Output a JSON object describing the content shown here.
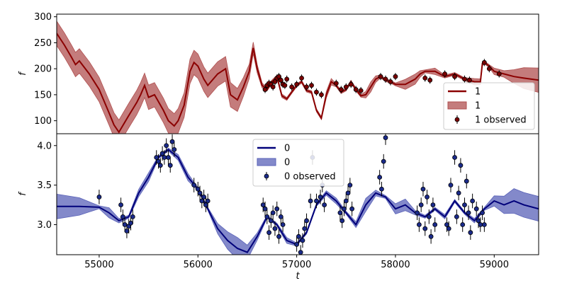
{
  "chart_data": [
    {
      "type": "line",
      "panel": "top",
      "title": "",
      "xlabel": "",
      "ylabel": "f",
      "xlim": [
        54570,
        59450
      ],
      "ylim": [
        75,
        305
      ],
      "yticks": [
        100,
        150,
        200,
        250,
        300
      ],
      "grid": false,
      "legend": {
        "placement": "bottom-right",
        "entries": [
          {
            "label": "1",
            "kind": "line"
          },
          {
            "label": "1",
            "kind": "band"
          },
          {
            "label": "1 observed",
            "kind": "points"
          }
        ]
      },
      "colors": {
        "line": "#8b0000",
        "band": "#b05050",
        "point_face": "#7a0000"
      },
      "series": [
        {
          "name": "1",
          "kind": "line",
          "x": [
            54570,
            54650,
            54720,
            54760,
            54800,
            54900,
            55000,
            55100,
            55150,
            55200,
            55300,
            55380,
            55420,
            55460,
            55500,
            55560,
            55650,
            55700,
            55760,
            55800,
            55860,
            55920,
            55960,
            56000,
            56060,
            56100,
            56200,
            56280,
            56330,
            56400,
            56460,
            56520,
            56560,
            56600,
            56650,
            56700,
            56750,
            56800,
            56850,
            56900,
            56950,
            57000,
            57050,
            57100,
            57150,
            57200,
            57250,
            57300,
            57350,
            57400,
            57450,
            57500,
            57550,
            57600,
            57650,
            57700,
            57750,
            57800,
            57850,
            57900,
            57950,
            58000,
            58100,
            58200,
            58250,
            58300,
            58400,
            58500,
            58600,
            58700,
            58800,
            58860,
            58880,
            58900,
            58950,
            59000,
            59100,
            59200,
            59300,
            59450
          ],
          "y": [
            268,
            245,
            222,
            208,
            215,
            190,
            160,
            115,
            92,
            78,
            110,
            135,
            150,
            168,
            145,
            150,
            120,
            100,
            90,
            100,
            130,
            195,
            212,
            205,
            180,
            168,
            190,
            200,
            150,
            140,
            165,
            195,
            240,
            200,
            168,
            160,
            175,
            185,
            148,
            142,
            155,
            168,
            175,
            158,
            155,
            120,
            105,
            150,
            175,
            168,
            155,
            160,
            175,
            160,
            148,
            150,
            165,
            180,
            185,
            178,
            175,
            170,
            170,
            180,
            190,
            195,
            195,
            185,
            190,
            180,
            175,
            175,
            210,
            212,
            205,
            195,
            190,
            185,
            182,
            178
          ]
        },
        {
          "name": "1 observed",
          "kind": "points",
          "x": [
            56680,
            56700,
            56720,
            56740,
            56760,
            56780,
            56800,
            56820,
            56840,
            56860,
            56880,
            56900,
            56950,
            57000,
            57050,
            57100,
            57150,
            57200,
            57250,
            57400,
            57450,
            57500,
            57550,
            57600,
            57650,
            57850,
            57900,
            57950,
            58000,
            58300,
            58350,
            58500,
            58600,
            58700,
            58750,
            58900,
            58950,
            59050
          ],
          "y": [
            160,
            168,
            172,
            170,
            165,
            175,
            182,
            185,
            178,
            170,
            168,
            180,
            165,
            170,
            182,
            165,
            168,
            155,
            150,
            172,
            160,
            165,
            170,
            160,
            158,
            185,
            180,
            175,
            185,
            182,
            178,
            190,
            185,
            180,
            178,
            212,
            200,
            190
          ]
        }
      ]
    },
    {
      "type": "line",
      "panel": "bottom",
      "title": "",
      "xlabel": "t",
      "ylabel": "f",
      "xlim": [
        54570,
        59450
      ],
      "ylim": [
        2.62,
        4.15
      ],
      "xticks": [
        55000,
        56000,
        57000,
        58000,
        59000
      ],
      "yticks": [
        3.0,
        3.5,
        4.0
      ],
      "grid": false,
      "legend": {
        "placement": "top-center",
        "entries": [
          {
            "label": "0",
            "kind": "line"
          },
          {
            "label": "0",
            "kind": "band"
          },
          {
            "label": "0 observed",
            "kind": "points"
          }
        ]
      },
      "colors": {
        "line": "#00007a",
        "band": "#5a62b8",
        "point_face": "#1a2a8a"
      },
      "series": [
        {
          "name": "0",
          "kind": "line",
          "x": [
            54570,
            54800,
            55000,
            55100,
            55200,
            55300,
            55400,
            55500,
            55600,
            55700,
            55800,
            55900,
            56000,
            56100,
            56200,
            56300,
            56400,
            56500,
            56600,
            56700,
            56800,
            56900,
            57000,
            57100,
            57200,
            57300,
            57400,
            57500,
            57600,
            57700,
            57800,
            57900,
            58000,
            58100,
            58200,
            58300,
            58400,
            58500,
            58600,
            58700,
            58800,
            58900,
            59000,
            59100,
            59200,
            59300,
            59450
          ],
          "y": [
            3.23,
            3.23,
            3.22,
            3.15,
            3.05,
            3.1,
            3.4,
            3.6,
            3.85,
            3.95,
            3.85,
            3.6,
            3.45,
            3.2,
            2.95,
            2.8,
            2.7,
            2.65,
            2.85,
            3.1,
            3.0,
            2.8,
            2.75,
            2.9,
            3.25,
            3.4,
            3.3,
            3.15,
            3.0,
            3.25,
            3.4,
            3.35,
            3.2,
            3.25,
            3.15,
            3.1,
            3.2,
            3.1,
            3.3,
            3.15,
            3.05,
            3.2,
            3.3,
            3.25,
            3.3,
            3.25,
            3.2
          ]
        },
        {
          "name": "0 observed",
          "kind": "points",
          "x": [
            55000,
            55220,
            55240,
            55260,
            55280,
            55300,
            55320,
            55340,
            55580,
            55600,
            55620,
            55640,
            55660,
            55680,
            55700,
            55720,
            55740,
            55760,
            55960,
            56000,
            56020,
            56040,
            56060,
            56080,
            56100,
            56660,
            56680,
            56700,
            56720,
            56740,
            56760,
            56780,
            56800,
            56820,
            56840,
            56860,
            57000,
            57020,
            57040,
            57060,
            57080,
            57100,
            57140,
            57160,
            57200,
            57240,
            57260,
            57280,
            57440,
            57460,
            57480,
            57500,
            57520,
            57540,
            57560,
            57840,
            57860,
            57880,
            57900,
            58220,
            58240,
            58260,
            58280,
            58300,
            58320,
            58340,
            58360,
            58380,
            58400,
            58520,
            58540,
            58560,
            58600,
            58620,
            58640,
            58660,
            58680,
            58700,
            58720,
            58740,
            58760,
            58780,
            58820,
            58840,
            58860,
            58880,
            58900
          ],
          "y": [
            3.35,
            3.25,
            3.1,
            3.0,
            2.92,
            2.98,
            3.02,
            3.1,
            3.85,
            3.8,
            3.75,
            3.9,
            3.85,
            4.0,
            3.85,
            3.75,
            4.05,
            3.95,
            3.5,
            3.45,
            3.4,
            3.3,
            3.35,
            3.25,
            3.3,
            3.25,
            3.2,
            3.1,
            2.9,
            3.05,
            3.15,
            2.95,
            3.2,
            2.85,
            3.1,
            3.0,
            2.75,
            2.85,
            2.65,
            2.8,
            2.95,
            3.05,
            3.3,
            3.85,
            3.3,
            3.35,
            3.5,
            3.25,
            3.15,
            3.05,
            3.2,
            3.3,
            3.4,
            3.5,
            3.2,
            3.6,
            3.45,
            3.8,
            4.1,
            3.15,
            3.0,
            3.25,
            3.45,
            2.95,
            3.35,
            3.1,
            2.85,
            3.25,
            3.0,
            3.0,
            2.95,
            3.5,
            3.85,
            3.1,
            3.4,
            3.75,
            3.0,
            3.25,
            3.55,
            3.15,
            2.9,
            3.3,
            3.2,
            3.05,
            3.0,
            3.15,
            3.0
          ]
        }
      ]
    }
  ]
}
